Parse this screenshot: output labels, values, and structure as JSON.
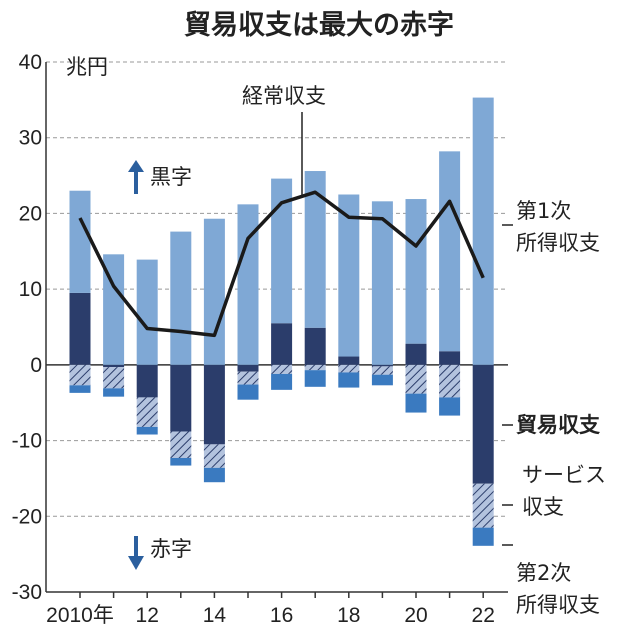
{
  "chart_data": {
    "type": "bar",
    "title": "貿易収支は最大の赤字",
    "unit": "兆円",
    "ylim": [
      -30,
      40
    ],
    "yticks": [
      40,
      30,
      20,
      10,
      0,
      -10,
      -20,
      -30
    ],
    "years": [
      2010,
      2011,
      2012,
      2013,
      2014,
      2015,
      2016,
      2017,
      2018,
      2019,
      2020,
      2021,
      2022
    ],
    "xtick_labels": [
      "2010年",
      "",
      "12",
      "",
      "14",
      "",
      "16",
      "",
      "18",
      "",
      "20",
      "",
      "22"
    ],
    "grid": true,
    "series": [
      {
        "name": "貿易収支",
        "color": "#2b3d6b",
        "values": [
          9.5,
          -0.3,
          -4.3,
          -8.8,
          -10.5,
          -0.9,
          5.5,
          4.9,
          1.1,
          -0.2,
          2.8,
          1.8,
          -15.7
        ]
      },
      {
        "name": "サービス収支",
        "color": "#a9bbd8",
        "values": [
          -2.7,
          -2.8,
          -3.9,
          -3.5,
          -3.1,
          -1.7,
          -1.2,
          -0.7,
          -1.0,
          -1.1,
          -3.8,
          -4.3,
          -5.8
        ]
      },
      {
        "name": "第1次所得収支",
        "color": "#7fa8d5",
        "values": [
          13.5,
          14.6,
          13.9,
          17.6,
          19.3,
          21.2,
          19.1,
          20.7,
          21.4,
          21.6,
          19.1,
          26.4,
          35.3
        ]
      },
      {
        "name": "第2次所得収支",
        "color": "#3a7ac0",
        "values": [
          -1.0,
          -1.1,
          -1.0,
          -1.0,
          -1.9,
          -2.0,
          -2.1,
          -2.2,
          -2.0,
          -1.4,
          -2.5,
          -2.4,
          -2.4
        ]
      },
      {
        "name": "経常収支",
        "type": "line",
        "color": "#1a1a1a",
        "values": [
          19.4,
          10.4,
          4.8,
          4.4,
          3.9,
          16.7,
          21.4,
          22.8,
          19.5,
          19.3,
          15.7,
          21.6,
          11.5
        ]
      }
    ],
    "annotations": {
      "surplus": "黒字",
      "deficit": "赤字",
      "current_account": "経常収支",
      "primary_income": [
        "第1次",
        "所得収支"
      ],
      "trade_balance": "貿易収支",
      "services": [
        "サービス",
        "収支"
      ],
      "secondary_income": [
        "第2次",
        "所得収支"
      ]
    }
  }
}
